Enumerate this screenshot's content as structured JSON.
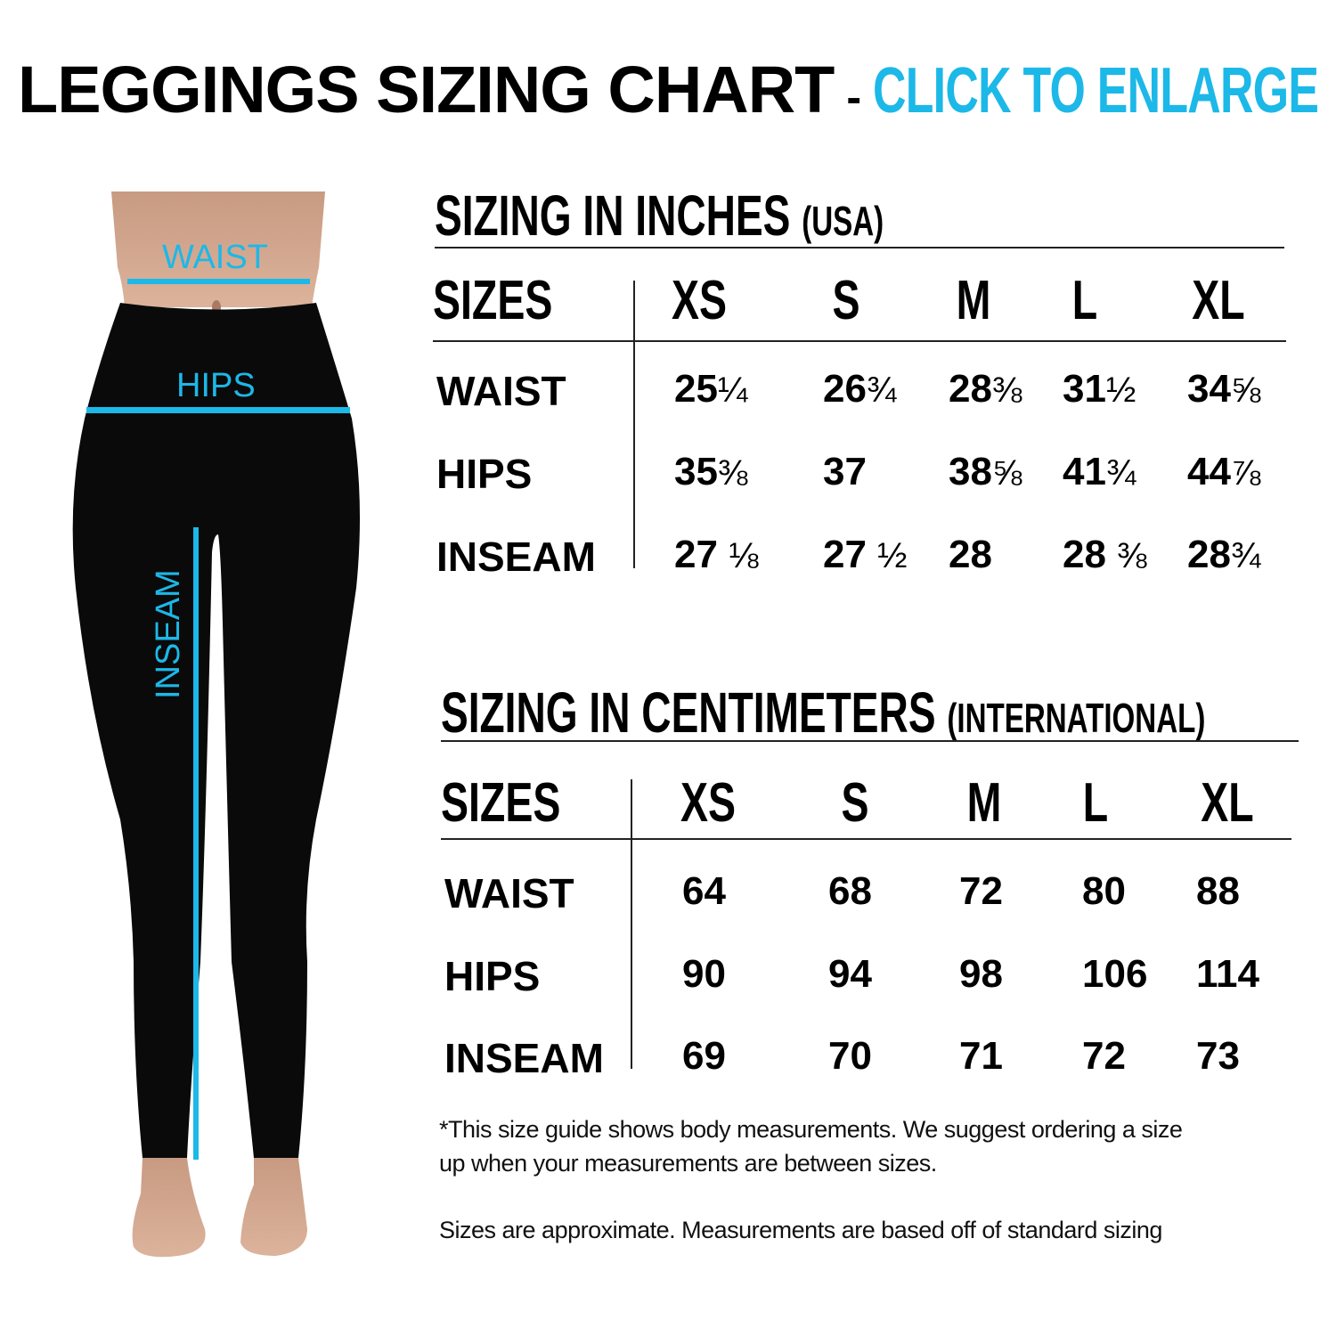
{
  "title": {
    "main": "LEGGINGS SIZING CHART",
    "separator": "-",
    "link": "CLICK TO ENLARGE"
  },
  "colors": {
    "accent": "#1cb8e8",
    "leggings": "#0a0a0a",
    "text": "#000000"
  },
  "figure": {
    "labels": {
      "waist": "WAIST",
      "hips": "HIPS",
      "inseam": "INSEAM"
    }
  },
  "inches": {
    "title": "SIZING IN INCHES",
    "subtitle": "(USA)",
    "header": [
      "SIZES",
      "XS",
      "S",
      "M",
      "L",
      "XL"
    ],
    "rows": [
      {
        "label": "WAIST",
        "values": [
          [
            "25",
            "¼"
          ],
          [
            "26",
            "¾"
          ],
          [
            "28",
            "⅜"
          ],
          [
            "31",
            "½"
          ],
          [
            "34",
            "⅝"
          ]
        ]
      },
      {
        "label": "HIPS",
        "values": [
          [
            "35",
            "⅜"
          ],
          [
            "37",
            ""
          ],
          [
            "38",
            "⅝"
          ],
          [
            "41",
            "¾"
          ],
          [
            "44",
            "⅞"
          ]
        ]
      },
      {
        "label": "INSEAM",
        "values": [
          [
            "27 ",
            "⅛"
          ],
          [
            "27 ",
            "½"
          ],
          [
            "28",
            ""
          ],
          [
            "28 ",
            "⅜"
          ],
          [
            "28",
            "¾"
          ]
        ]
      }
    ]
  },
  "centimeters": {
    "title": "SIZING IN CENTIMETERS",
    "subtitle": "(INTERNATIONAL)",
    "header": [
      "SIZES",
      "XS",
      "S",
      "M",
      "L",
      "XL"
    ],
    "rows": [
      {
        "label": "WAIST",
        "values": [
          "64",
          "68",
          "72",
          "80",
          "88"
        ]
      },
      {
        "label": "HIPS",
        "values": [
          "90",
          "94",
          "98",
          "106",
          "114"
        ]
      },
      {
        "label": "INSEAM",
        "values": [
          "69",
          "70",
          "71",
          "72",
          "73"
        ]
      }
    ]
  },
  "notes": {
    "line1": "*This size guide shows body measurements. We suggest ordering a size",
    "line2": "up when your measurements are between sizes.",
    "line3": "Sizes are approximate. Measurements are based off of standard sizing"
  }
}
